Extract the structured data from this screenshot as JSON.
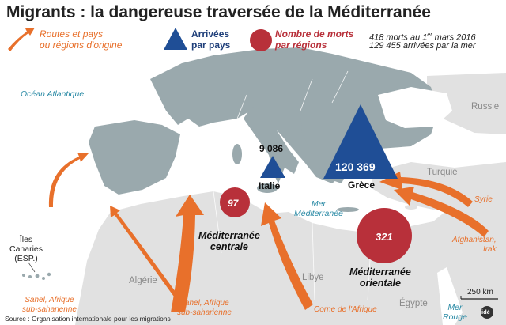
{
  "title": "Migrants : la dangereuse traversée de la Méditerranée",
  "legend": {
    "routes": "Routes et pays\nou régions d'origine",
    "arrivals": "Arrivées\npar pays",
    "deaths": "Nombre de morts\npar régions"
  },
  "summary": {
    "deaths_line_pre": "418 morts au  1",
    "deaths_line_sup": "er",
    "deaths_line_post": " mars 2016",
    "arrivals_line": "129 455 arrivées par la mer"
  },
  "seas": {
    "atlantic": "Océan Atlantique",
    "mediterranean": "Mer\nMéditerranée",
    "red_sea": "Mer\nRouge"
  },
  "countries": {
    "russia": "Russie",
    "turkey": "Turquie",
    "algeria": "Algérie",
    "libya": "Libye",
    "egypt": "Égypte",
    "italy": "Italie",
    "greece": "Grèce",
    "canaries": "Îles\nCanaries\n(ESP.)"
  },
  "arrivals": {
    "italy": "9 086",
    "greece": "120 369"
  },
  "deaths": {
    "central": "97",
    "eastern": "321"
  },
  "regions": {
    "central": "Méditerranée\ncentrale",
    "eastern": "Méditerranée\norientale"
  },
  "routes": {
    "syria": "Syrie",
    "afghanistan": "Afghanistan,\nIrak",
    "sahel_west": "Sahel, Afrique\nsub-saharienne",
    "sahel_central": "Sahel, Afrique\nsub-saharienne",
    "horn": "Corne de l'Afrique"
  },
  "scale": "250 km",
  "logo": "idé",
  "source": "Source : Organisation internationale pour les migrations",
  "colors": {
    "land_europe": "#9aa9ad",
    "land_other": "#e1e1e1",
    "route": "#e8702b",
    "arrival": "#1f4e96",
    "death": "#b8303a",
    "sea_text": "#2a8aa5"
  }
}
